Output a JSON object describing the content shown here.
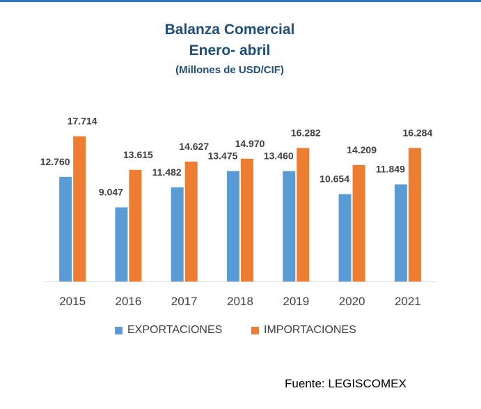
{
  "header": {
    "title_line1": "Balanza Comercial",
    "title_line2": "Enero- abril",
    "subtitle": "(Millones de USD/CIF)"
  },
  "legend": {
    "exports_label": "EXPORTACIONES",
    "imports_label": "IMPORTACIONES"
  },
  "source": "Fuente: LEGISCOMEX",
  "colors": {
    "exports": "#5b9bd5",
    "imports": "#ed7d31",
    "title": "#1f4e79",
    "top_rule": "#2f77c6"
  },
  "chart_data": {
    "type": "bar",
    "title": "Balanza Comercial",
    "subtitle": "Enero- abril (Millones de USD/CIF)",
    "categories": [
      "2015",
      "2016",
      "2017",
      "2018",
      "2019",
      "2020",
      "2021"
    ],
    "series": [
      {
        "name": "EXPORTACIONES",
        "values": [
          12760,
          9047,
          11482,
          13475,
          13460,
          10654,
          11849
        ],
        "labels": [
          "12.760",
          "9.047",
          "11.482",
          "13.475",
          "13.460",
          "10.654",
          "11.849"
        ]
      },
      {
        "name": "IMPORTACIONES",
        "values": [
          17714,
          13615,
          14627,
          14970,
          16282,
          14209,
          16284
        ],
        "labels": [
          "17.714",
          "13.615",
          "14.627",
          "14.970",
          "16.282",
          "14.209",
          "16.284"
        ]
      }
    ],
    "ylim": [
      0,
      20000
    ],
    "grid": false,
    "legend_position": "bottom"
  }
}
